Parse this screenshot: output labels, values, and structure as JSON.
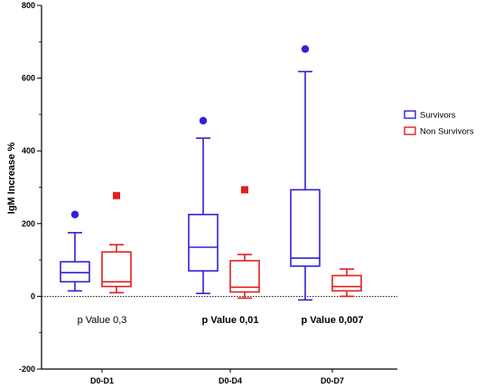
{
  "chart_data": {
    "type": "box",
    "ylabel": "IgM Increase %",
    "ylim": [
      -200,
      800
    ],
    "yticks": [
      -200,
      0,
      200,
      400,
      600,
      800
    ],
    "categories": [
      "D0-D1",
      "D0-D4",
      "D0-D7"
    ],
    "reference_line": {
      "y": 0,
      "style": "dotted"
    },
    "legend": {
      "position": "right",
      "entries": [
        "Survivors",
        "Non Survivors"
      ]
    },
    "colors": {
      "Survivors": "#2e22d6",
      "Non Survivors": "#e02020"
    },
    "series": [
      {
        "name": "Survivors",
        "outlier_marker": "circle",
        "boxes": [
          {
            "whisker_low": 15,
            "q1": 40,
            "median": 65,
            "q3": 95,
            "whisker_high": 175,
            "outliers": [
              225
            ]
          },
          {
            "whisker_low": 8,
            "q1": 70,
            "median": 135,
            "q3": 225,
            "whisker_high": 435,
            "outliers": [
              483
            ]
          },
          {
            "whisker_low": -10,
            "q1": 83,
            "median": 105,
            "q3": 293,
            "whisker_high": 618,
            "outliers": [
              680
            ]
          }
        ]
      },
      {
        "name": "Non Survivors",
        "outlier_marker": "square",
        "boxes": [
          {
            "whisker_low": 10,
            "q1": 27,
            "median": 40,
            "q3": 122,
            "whisker_high": 142,
            "outliers": [
              277
            ]
          },
          {
            "whisker_low": -5,
            "q1": 12,
            "median": 25,
            "q3": 98,
            "whisker_high": 115,
            "outliers": [
              293
            ]
          },
          {
            "whisker_low": 0,
            "q1": 15,
            "median": 27,
            "q3": 57,
            "whisker_high": 75,
            "outliers": []
          }
        ]
      }
    ],
    "annotations": [
      {
        "category": "D0-D1",
        "text": "p Value 0,3",
        "bold": false
      },
      {
        "category": "D0-D4",
        "text": "p Value 0,01",
        "bold": true
      },
      {
        "category": "D0-D7",
        "text": "p Value 0,007",
        "bold": true
      }
    ]
  }
}
